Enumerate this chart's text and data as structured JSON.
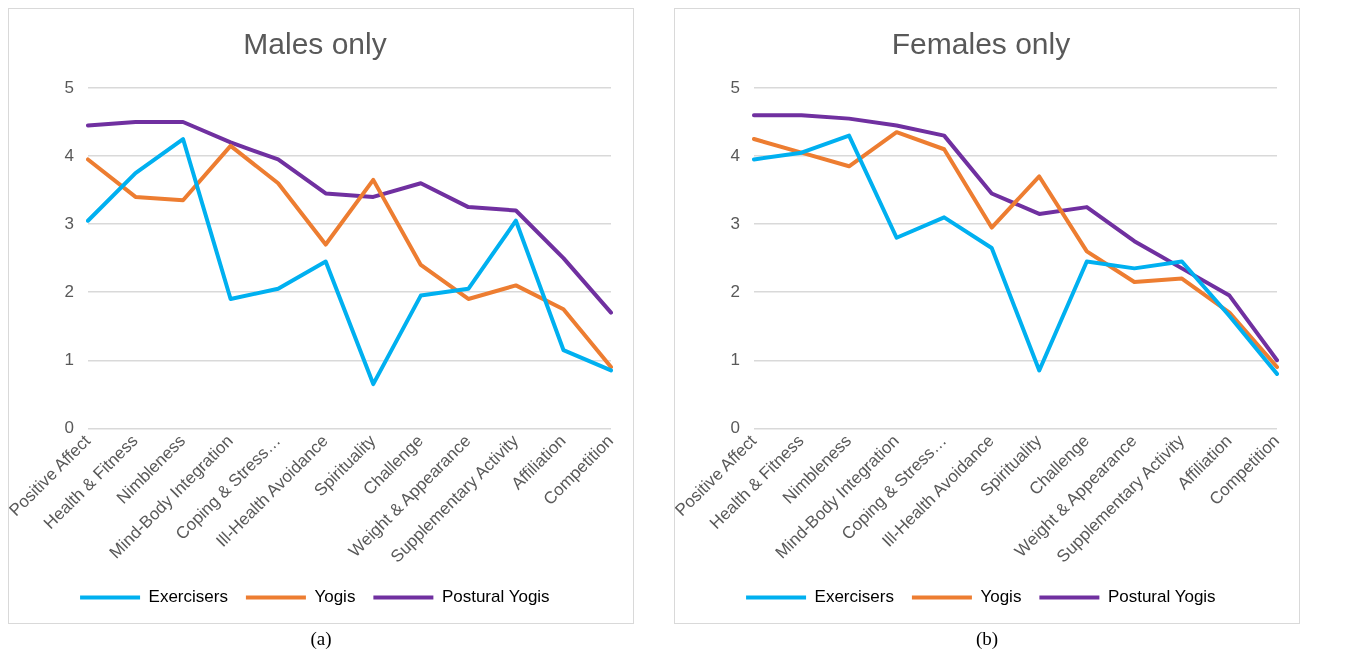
{
  "chart_data": [
    {
      "type": "line",
      "title": "Males only",
      "categories": [
        "Positive Affect",
        "Health & Fitness",
        "Nimbleness",
        "Mind-Body Integration",
        "Coping & Stress…",
        "Ill-Health Avoidance",
        "Spirituality",
        "Challenge",
        "Weight & Appearance",
        "Supplementary Activity",
        "Affiliation",
        "Competition"
      ],
      "series": [
        {
          "name": "Exercisers",
          "color": "#00b0f0",
          "values": [
            3.05,
            3.75,
            4.25,
            1.9,
            2.05,
            2.45,
            0.65,
            1.95,
            2.05,
            3.05,
            1.15,
            0.85
          ]
        },
        {
          "name": "Yogis",
          "color": "#ed7d31",
          "values": [
            3.95,
            3.4,
            3.35,
            4.15,
            3.6,
            2.7,
            3.65,
            2.4,
            1.9,
            2.1,
            1.75,
            0.9
          ]
        },
        {
          "name": "Postural Yogis",
          "color": "#7030a0",
          "values": [
            4.45,
            4.5,
            4.5,
            4.2,
            3.95,
            3.45,
            3.4,
            3.6,
            3.25,
            3.2,
            2.5,
            1.7
          ]
        }
      ],
      "ylim": [
        0,
        5
      ],
      "yticks": [
        0,
        1,
        2,
        3,
        4,
        5
      ],
      "grid": "y",
      "legend": "bottom",
      "marker": "none",
      "line_style": "solid",
      "annotations": [
        "(a)"
      ]
    },
    {
      "type": "line",
      "title": "Females only",
      "categories": [
        "Positive Affect",
        "Health & Fitness",
        "Nimbleness",
        "Mind-Body Integration",
        "Coping & Stress…",
        "Ill-Health Avoidance",
        "Spirituality",
        "Challenge",
        "Weight & Appearance",
        "Supplementary Activity",
        "Affiliation",
        "Competition"
      ],
      "series": [
        {
          "name": "Exercisers",
          "color": "#00b0f0",
          "values": [
            3.95,
            4.05,
            4.3,
            2.8,
            3.1,
            2.65,
            0.85,
            2.45,
            2.35,
            2.45,
            1.65,
            0.8
          ]
        },
        {
          "name": "Yogis",
          "color": "#ed7d31",
          "values": [
            4.25,
            4.05,
            3.85,
            4.35,
            4.1,
            2.95,
            3.7,
            2.6,
            2.15,
            2.2,
            1.7,
            0.9
          ]
        },
        {
          "name": "Postural Yogis",
          "color": "#7030a0",
          "values": [
            4.6,
            4.6,
            4.55,
            4.45,
            4.3,
            3.45,
            3.15,
            3.25,
            2.75,
            2.35,
            1.95,
            1.0
          ]
        }
      ],
      "ylim": [
        0,
        5
      ],
      "yticks": [
        0,
        1,
        2,
        3,
        4,
        5
      ],
      "grid": "y",
      "legend": "bottom",
      "marker": "none",
      "line_style": "solid",
      "annotations": [
        "(b)"
      ]
    }
  ]
}
